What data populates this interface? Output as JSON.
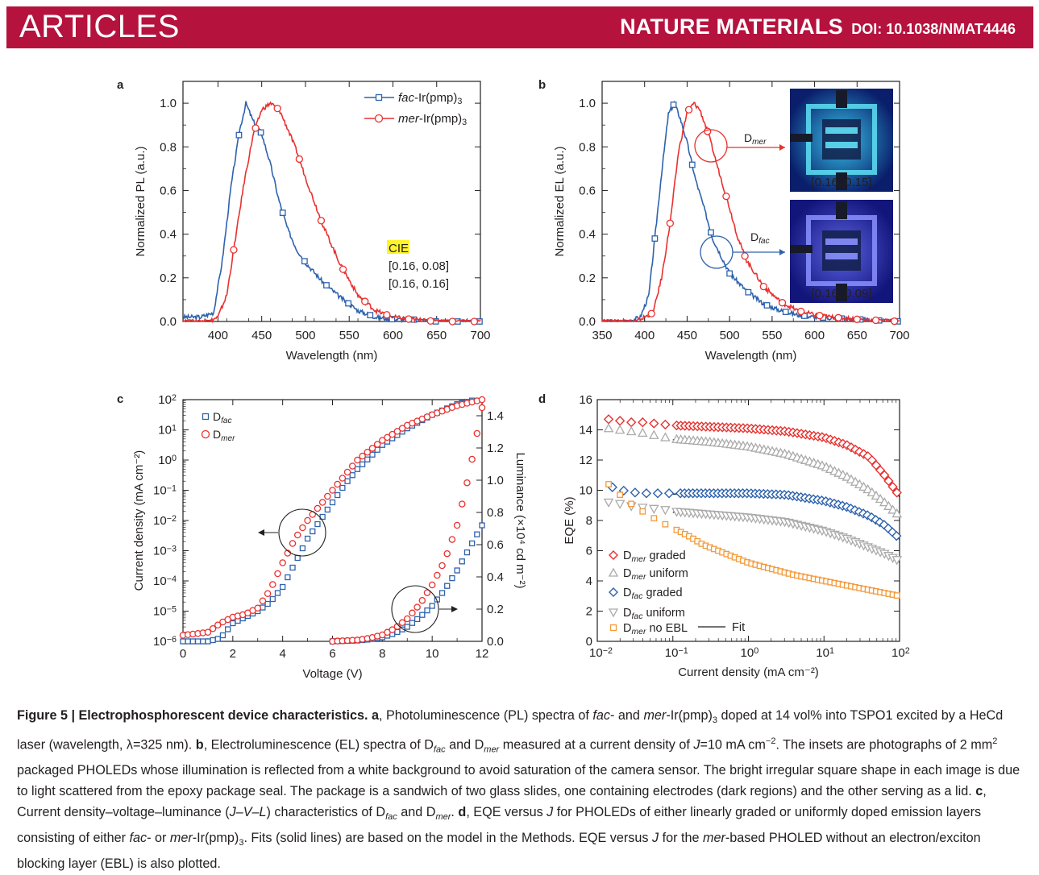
{
  "header": {
    "section": "ARTICLES",
    "journal": "NATURE MATERIALS",
    "doi": "DOI: 10.1038/NMAT4446"
  },
  "panels": {
    "a": {
      "letter": "a",
      "legend": [
        {
          "italic": "fac",
          "rest": "-Ir(pmp)",
          "sub": "3"
        },
        {
          "italic": "mer",
          "rest": "-Ir(pmp)",
          "sub": "3"
        }
      ],
      "cie_title": "CIE",
      "cie_values": [
        "[0.16, 0.08]",
        "[0.16, 0.16]"
      ]
    },
    "b": {
      "letter": "b",
      "inset_labels": [
        "[0.16, 0.15]",
        "[0.16, 0.09]"
      ],
      "d_mer": {
        "base": "D",
        "sub": "mer"
      },
      "d_fac": {
        "base": "D",
        "sub": "fac"
      }
    },
    "c": {
      "letter": "c",
      "legend": [
        {
          "base": "D",
          "sub": "fac"
        },
        {
          "base": "D",
          "sub": "mer"
        }
      ],
      "right_ylabel": "Luminance (×10⁴ cd m⁻²)"
    },
    "d": {
      "letter": "d",
      "legend": [
        {
          "base": "D",
          "sub": "mer",
          "rest": " graded"
        },
        {
          "base": "D",
          "sub": "mer",
          "rest": " uniform"
        },
        {
          "base": "D",
          "sub": "fac",
          "rest": " graded"
        },
        {
          "base": "D",
          "sub": "fac",
          "rest": " uniform"
        },
        {
          "base": "D",
          "sub": "mer",
          "rest": " no EBL"
        }
      ],
      "fit_label": "Fit"
    }
  },
  "chart_data": [
    {
      "type": "line",
      "panel": "a",
      "xlabel": "Wavelength (nm)",
      "ylabel": "Normalized PL (a.u.)",
      "xlim": [
        360,
        700
      ],
      "ylim": [
        0,
        1.1
      ],
      "xticks": [
        400,
        450,
        500,
        550,
        600,
        650,
        700
      ],
      "yticks": [
        0.0,
        0.2,
        0.4,
        0.6,
        0.8,
        1.0
      ],
      "series": [
        {
          "name": "fac-Ir(pmp)3",
          "color": "#2e62ad",
          "x": [
            360,
            380,
            395,
            405,
            415,
            425,
            432,
            440,
            450,
            460,
            470,
            480,
            490,
            500,
            520,
            540,
            560,
            580,
            600,
            620,
            650,
            700
          ],
          "y": [
            0.02,
            0.02,
            0.04,
            0.28,
            0.62,
            0.88,
            1.0,
            0.92,
            0.86,
            0.72,
            0.55,
            0.42,
            0.33,
            0.27,
            0.18,
            0.11,
            0.05,
            0.02,
            0.01,
            0.01,
            0.0,
            0.0
          ]
        },
        {
          "name": "mer-Ir(pmp)3",
          "color": "#e8312f",
          "x": [
            360,
            390,
            400,
            410,
            420,
            430,
            440,
            450,
            460,
            470,
            480,
            490,
            500,
            520,
            540,
            560,
            580,
            600,
            620,
            650,
            700
          ],
          "y": [
            0.0,
            0.0,
            0.02,
            0.12,
            0.38,
            0.64,
            0.85,
            0.97,
            1.0,
            0.97,
            0.88,
            0.78,
            0.66,
            0.44,
            0.26,
            0.12,
            0.05,
            0.02,
            0.01,
            0.0,
            0.0
          ]
        }
      ]
    },
    {
      "type": "line",
      "panel": "b",
      "xlabel": "Wavelength (nm)",
      "ylabel": "Normalized EL (a.u.)",
      "xlim": [
        350,
        700
      ],
      "ylim": [
        0,
        1.1
      ],
      "xticks": [
        350,
        400,
        450,
        500,
        550,
        600,
        650,
        700
      ],
      "yticks": [
        0.0,
        0.2,
        0.4,
        0.6,
        0.8,
        1.0
      ],
      "series": [
        {
          "name": "Dfac",
          "color": "#2e62ad",
          "x": [
            350,
            380,
            395,
            405,
            412,
            420,
            428,
            435,
            442,
            450,
            460,
            470,
            480,
            490,
            500,
            520,
            540,
            560,
            580,
            600,
            650,
            700
          ],
          "y": [
            0.0,
            0.0,
            0.02,
            0.12,
            0.38,
            0.68,
            0.95,
            1.0,
            0.93,
            0.82,
            0.65,
            0.52,
            0.38,
            0.3,
            0.22,
            0.14,
            0.08,
            0.05,
            0.03,
            0.02,
            0.01,
            0.0
          ]
        },
        {
          "name": "Dmer",
          "color": "#e8312f",
          "x": [
            350,
            390,
            410,
            420,
            430,
            440,
            450,
            458,
            465,
            475,
            485,
            500,
            510,
            520,
            540,
            560,
            580,
            600,
            620,
            650,
            700
          ],
          "y": [
            0.0,
            0.0,
            0.04,
            0.2,
            0.45,
            0.78,
            0.96,
            1.0,
            0.97,
            0.86,
            0.72,
            0.52,
            0.38,
            0.28,
            0.16,
            0.09,
            0.05,
            0.03,
            0.02,
            0.01,
            0.0
          ]
        }
      ]
    },
    {
      "type": "scatter",
      "panel": "c",
      "xlabel": "Voltage (V)",
      "ylabel": "Current density (mA cm⁻²)",
      "y2label": "Luminance (×10⁴ cd m⁻²)",
      "xlim": [
        0,
        12
      ],
      "ylim_log": [
        -6,
        2
      ],
      "y2lim": [
        0,
        1.5
      ],
      "xticks": [
        0,
        2,
        4,
        6,
        8,
        10,
        12
      ],
      "yticks_log": [
        -6,
        -5,
        -4,
        -3,
        -2,
        -1,
        0,
        1,
        2
      ],
      "y2ticks": [
        0.0,
        0.2,
        0.4,
        0.6,
        0.8,
        1.0,
        1.2,
        1.4
      ],
      "series": [
        {
          "name": "Dfac J",
          "color": "#2e62ad",
          "x": [
            0,
            1,
            1.5,
            2,
            2.5,
            3,
            3.5,
            4,
            4.5,
            5,
            5.5,
            6,
            6.5,
            7,
            8,
            9,
            10,
            11,
            12
          ],
          "y_log": [
            -6,
            -6,
            -5.9,
            -5.4,
            -5.2,
            -5.0,
            -4.7,
            -4.2,
            -3.4,
            -2.6,
            -2.0,
            -1.4,
            -0.8,
            -0.3,
            0.5,
            1.05,
            1.5,
            1.85,
            2.05
          ]
        },
        {
          "name": "Dmer J",
          "color": "#e8312f",
          "x": [
            0,
            1,
            1.5,
            2,
            2.5,
            3,
            3.5,
            4,
            4.5,
            5,
            5.5,
            6,
            6.5,
            7,
            8,
            9,
            10,
            11,
            12
          ],
          "y_log": [
            -5.8,
            -5.7,
            -5.4,
            -5.2,
            -5.1,
            -4.9,
            -4.3,
            -3.4,
            -2.6,
            -2.0,
            -1.5,
            -1.0,
            -0.5,
            0.0,
            0.65,
            1.15,
            1.5,
            1.8,
            2.0
          ]
        },
        {
          "name": "Dfac L",
          "color": "#2e62ad",
          "x": [
            6,
            7,
            7.5,
            8,
            8.5,
            9,
            9.5,
            10,
            10.5,
            11,
            11.5,
            12
          ],
          "y2": [
            0.0,
            0.005,
            0.012,
            0.025,
            0.05,
            0.09,
            0.15,
            0.22,
            0.32,
            0.44,
            0.58,
            0.72
          ]
        },
        {
          "name": "Dmer L",
          "color": "#e8312f",
          "x": [
            6,
            7,
            7.5,
            8,
            8.5,
            9,
            9.5,
            10,
            10.5,
            11,
            11.5,
            12
          ],
          "y2": [
            0.0,
            0.008,
            0.02,
            0.04,
            0.08,
            0.14,
            0.23,
            0.35,
            0.5,
            0.72,
            1.05,
            1.45
          ]
        }
      ]
    },
    {
      "type": "scatter",
      "panel": "d",
      "xlabel": "Current density (mA cm⁻²)",
      "ylabel": "EQE (%)",
      "xlim_log": [
        -2,
        2
      ],
      "ylim": [
        0,
        16
      ],
      "xticks_log": [
        -2,
        -1,
        0,
        1,
        2
      ],
      "yticks": [
        0,
        2,
        4,
        6,
        8,
        10,
        12,
        14,
        16
      ],
      "series": [
        {
          "name": "Dmer graded",
          "color": "#e8312f",
          "x_log": [
            -1.85,
            -1.7,
            -1.55,
            -1.4,
            -1.2,
            -1.0,
            -0.5,
            0.0,
            0.5,
            1.0,
            1.3,
            1.6,
            1.8,
            2.0
          ],
          "y": [
            14.7,
            14.6,
            14.5,
            14.5,
            14.4,
            14.3,
            14.2,
            14.1,
            13.9,
            13.5,
            13.0,
            12.2,
            11.0,
            9.6
          ]
        },
        {
          "name": "Dmer uniform",
          "color": "#aaaaaa",
          "x_log": [
            -1.85,
            -1.7,
            -1.55,
            -1.4,
            -1.2,
            -1.0,
            -0.5,
            0.0,
            0.5,
            1.0,
            1.3,
            1.6,
            1.8,
            2.0
          ],
          "y": [
            14.1,
            14.0,
            13.9,
            13.8,
            13.6,
            13.4,
            13.2,
            12.9,
            12.4,
            11.6,
            10.9,
            10.0,
            9.2,
            8.3
          ]
        },
        {
          "name": "Dfac graded",
          "color": "#2e62ad",
          "x_log": [
            -1.8,
            -1.6,
            -1.4,
            -1.2,
            -1.0,
            -0.5,
            0.0,
            0.5,
            1.0,
            1.3,
            1.6,
            1.8,
            2.0
          ],
          "y": [
            10.2,
            9.9,
            9.8,
            9.8,
            9.8,
            9.8,
            9.8,
            9.7,
            9.3,
            8.9,
            8.3,
            7.7,
            6.8
          ]
        },
        {
          "name": "Dfac uniform",
          "color": "#aaaaaa",
          "x_log": [
            -1.85,
            -1.7,
            -1.5,
            -1.3,
            -1.1,
            -1.0,
            -0.5,
            0.0,
            0.5,
            1.0,
            1.3,
            1.6,
            1.8,
            2.0
          ],
          "y": [
            9.2,
            9.1,
            8.9,
            8.8,
            8.7,
            8.6,
            8.4,
            8.2,
            7.9,
            7.3,
            6.8,
            6.2,
            5.8,
            5.3
          ]
        },
        {
          "name": "Dmer no EBL",
          "color": "#f39a3a",
          "x_log": [
            -1.85,
            -1.7,
            -1.55,
            -1.4,
            -1.2,
            -1.0,
            -0.8,
            -0.6,
            -0.4,
            -0.2,
            0.0,
            0.3,
            0.6,
            1.0,
            1.3,
            1.6,
            1.8,
            2.0
          ],
          "y": [
            10.4,
            9.7,
            9.1,
            8.6,
            8.0,
            7.5,
            7.0,
            6.4,
            6.0,
            5.6,
            5.2,
            4.8,
            4.4,
            4.0,
            3.7,
            3.4,
            3.2,
            3.0
          ]
        }
      ]
    }
  ],
  "caption": {
    "lead": "Figure 5 | Electrophosphorescent device characteristics.",
    "segments": [
      {
        "b": "a"
      },
      {
        "t": ", Photoluminescence (PL) spectra of "
      },
      {
        "i": "fac"
      },
      {
        "t": "- and "
      },
      {
        "i": "mer"
      },
      {
        "t": "-Ir(pmp)"
      },
      {
        "sub": "3"
      },
      {
        "t": " doped at 14 vol% into TSPO1 excited by a HeCd laser (wavelength, λ=325 nm). "
      },
      {
        "b": "b"
      },
      {
        "t": ", Electroluminescence (EL) spectra of D"
      },
      {
        "subi": "fac"
      },
      {
        "t": " and D"
      },
      {
        "subi": "mer"
      },
      {
        "t": " measured at a current density of "
      },
      {
        "i": "J"
      },
      {
        "t": "=10 mA cm"
      },
      {
        "sup": "−2"
      },
      {
        "t": ". The insets are photographs of 2 mm"
      },
      {
        "sup": "2"
      },
      {
        "t": " packaged PHOLEDs whose illumination is reflected from a white background to avoid saturation of the camera sensor. The bright irregular square shape in each image is due to light scattered from the epoxy package seal. The package is a sandwich of two glass slides, one containing electrodes (dark regions) and the other serving as a lid. "
      },
      {
        "b": "c"
      },
      {
        "t": ", Current density–voltage–luminance ("
      },
      {
        "i": "J–V–L"
      },
      {
        "t": ") characteristics of D"
      },
      {
        "subi": "fac"
      },
      {
        "t": " and D"
      },
      {
        "subi": "mer"
      },
      {
        "t": ". "
      },
      {
        "b": "d"
      },
      {
        "t": ", EQE versus "
      },
      {
        "i": "J"
      },
      {
        "t": " for PHOLEDs of either linearly graded or uniformly doped emission layers consisting of either "
      },
      {
        "i": "fac"
      },
      {
        "t": "- or "
      },
      {
        "i": "mer"
      },
      {
        "t": "-Ir(pmp)"
      },
      {
        "sub": "3"
      },
      {
        "t": ". Fits (solid lines) are based on the model in the Methods. EQE versus "
      },
      {
        "i": "J"
      },
      {
        "t": " for the "
      },
      {
        "i": "mer"
      },
      {
        "t": "-based PHOLED without an electron/exciton blocking layer (EBL) is also plotted."
      }
    ]
  }
}
